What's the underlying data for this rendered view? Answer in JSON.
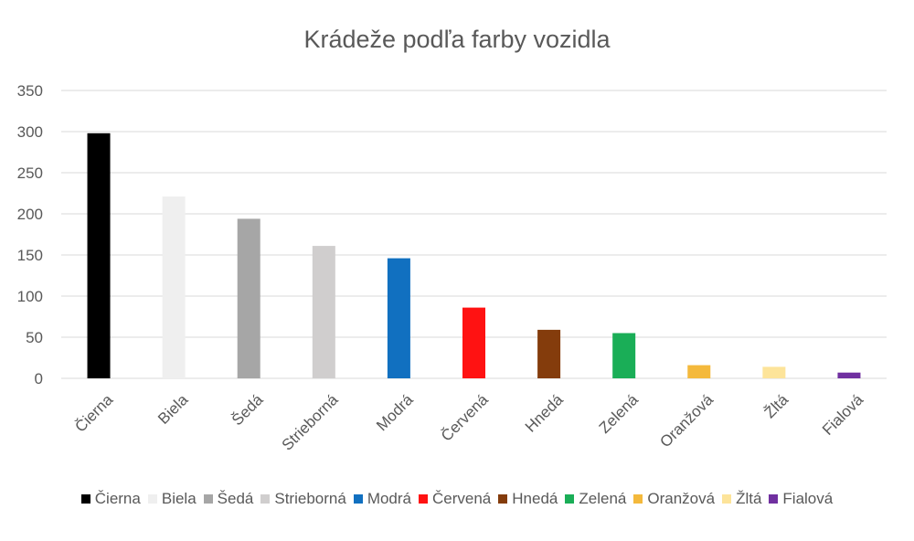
{
  "chart_data": {
    "type": "bar",
    "title": "Krádeže podľa farby vozidla",
    "xlabel": "",
    "ylabel": "",
    "ylim": [
      0,
      350
    ],
    "yticks": [
      0,
      50,
      100,
      150,
      200,
      250,
      300,
      350
    ],
    "grid": true,
    "legend_position": "bottom",
    "categories": [
      "Čierna",
      "Biela",
      "Šedá",
      "Strieborná",
      "Modrá",
      "Červená",
      "Hnedá",
      "Zelená",
      "Oranžová",
      "Žltá",
      "Fialová"
    ],
    "values": [
      298,
      221,
      194,
      161,
      146,
      86,
      59,
      55,
      16,
      14,
      7
    ],
    "colors": [
      "#000000",
      "#efefef",
      "#a6a6a6",
      "#d0cece",
      "#1170c0",
      "#ff1212",
      "#843c0c",
      "#1aae57",
      "#f4b93c",
      "#fde49a",
      "#7030a0"
    ]
  }
}
